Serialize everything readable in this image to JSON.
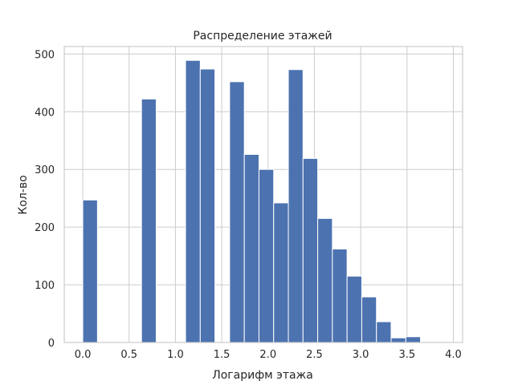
{
  "chart_data": {
    "type": "bar",
    "title": "Распределение этажей",
    "xlabel": "Логарифм этажа",
    "ylabel": "Кол-во",
    "bin_edges": [
      0.0,
      0.1585,
      0.317,
      0.4755,
      0.634,
      0.7925,
      0.951,
      1.1095,
      1.268,
      1.4265,
      1.585,
      1.7435,
      1.902,
      2.0605,
      2.219,
      2.3775,
      2.536,
      2.6945,
      2.853,
      3.0115,
      3.17,
      3.3285,
      3.487,
      3.6455,
      3.804,
      3.9625
    ],
    "values": [
      247,
      0,
      0,
      0,
      422,
      0,
      0,
      489,
      474,
      0,
      452,
      326,
      300,
      242,
      473,
      319,
      215,
      162,
      115,
      79,
      36,
      8,
      10,
      0,
      0
    ],
    "xlim": [
      -0.2,
      4.1
    ],
    "ylim": [
      0,
      513
    ],
    "xticks": [
      "0.0",
      "0.5",
      "1.0",
      "1.5",
      "2.0",
      "2.5",
      "3.0",
      "3.5",
      "4.0"
    ],
    "yticks": [
      "0",
      "100",
      "200",
      "300",
      "400",
      "500"
    ],
    "grid": true,
    "colors": {
      "bar": "#4c72b0",
      "grid": "#cccccc",
      "text": "#262626"
    }
  }
}
